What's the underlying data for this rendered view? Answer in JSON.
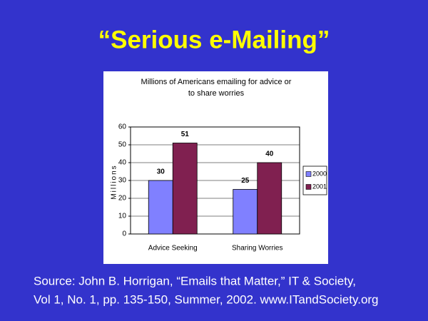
{
  "slide": {
    "title": "“Serious e-Mailing”",
    "source": [
      "Source: John B. Horrigan, “Emails that Matter,” IT & Society,",
      "Vol 1, No. 1, pp. 135-150, Summer, 2002. www.ITandSociety.org"
    ]
  },
  "chart_data": {
    "type": "bar",
    "title": [
      "Millions of Americans emailing for advice or",
      "to share worries"
    ],
    "y_label": "Millions",
    "categories": [
      "Advice Seeking",
      "Sharing Worries"
    ],
    "series": [
      {
        "name": "2000",
        "color": "#8080ff",
        "values": [
          30,
          25
        ]
      },
      {
        "name": "2001",
        "color": "#802050",
        "values": [
          51,
          40
        ]
      }
    ],
    "ylim": [
      0,
      60
    ],
    "yticks": [
      0,
      10,
      20,
      30,
      40,
      50,
      60
    ],
    "grid": true,
    "legend": "right"
  }
}
